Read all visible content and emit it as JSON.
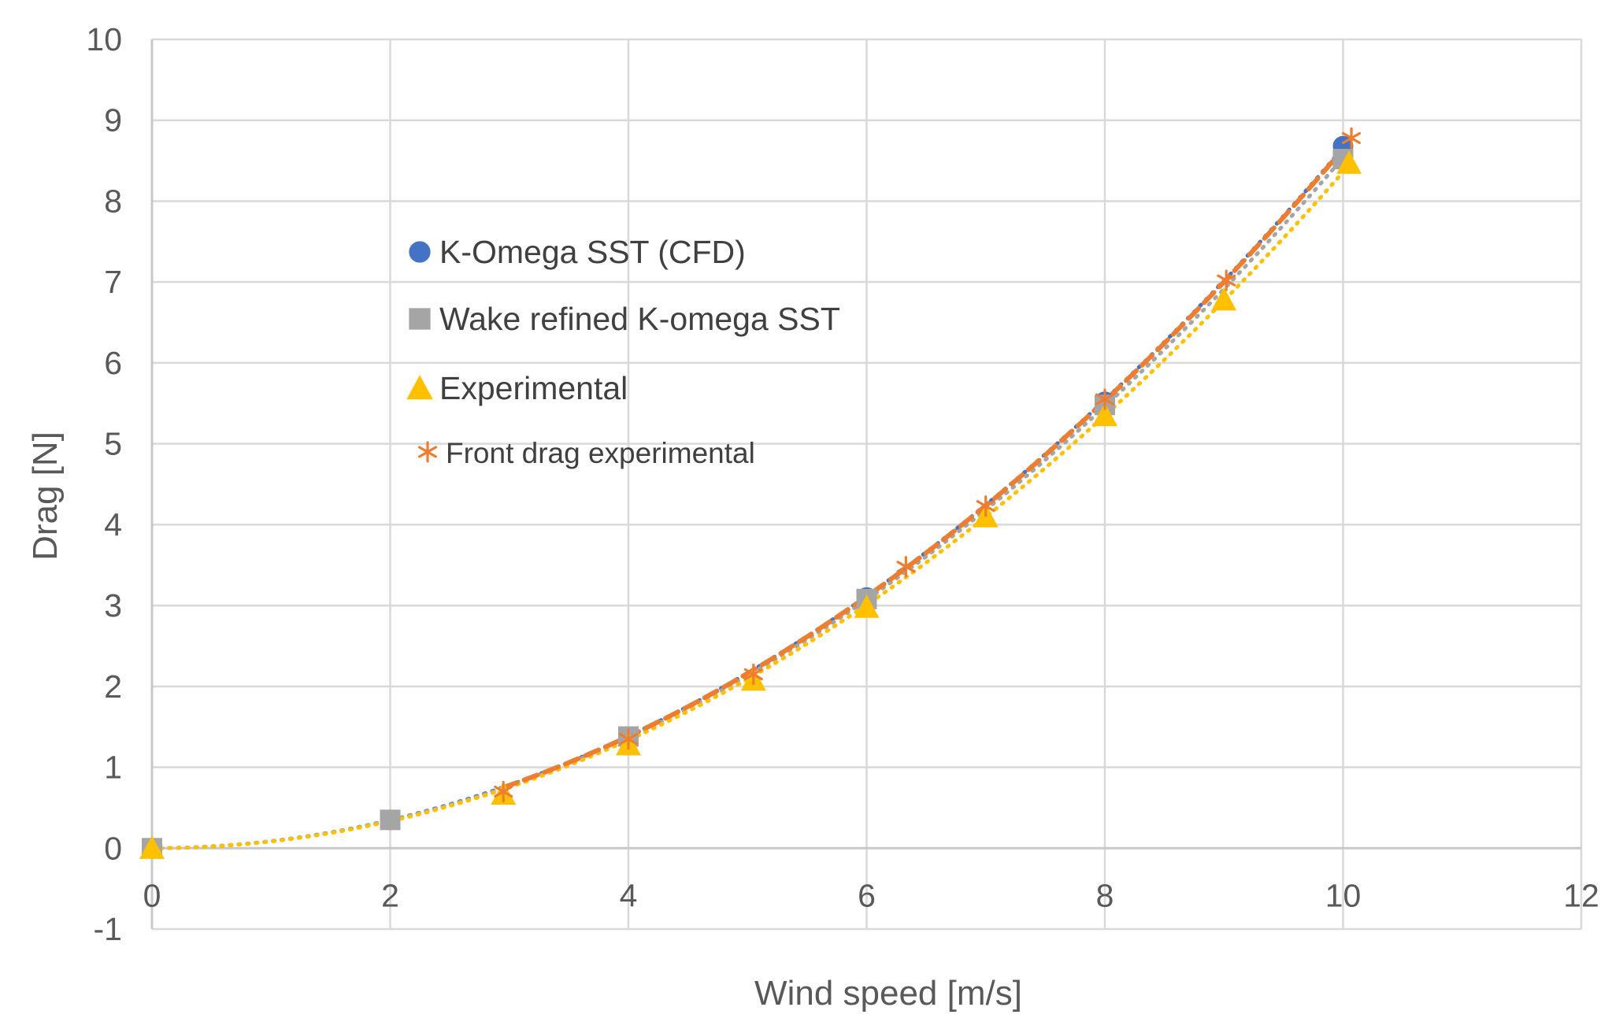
{
  "chart_data": {
    "type": "scatter",
    "xlabel": "Wind speed [m/s]",
    "ylabel": "Drag [N]",
    "xlim": [
      0,
      12
    ],
    "ylim": [
      -1,
      10
    ],
    "x_ticks": [
      0,
      2,
      4,
      6,
      8,
      10,
      12
    ],
    "y_ticks": [
      -1,
      0,
      1,
      2,
      3,
      4,
      5,
      6,
      7,
      8,
      9,
      10
    ],
    "grid": true,
    "legend_position": "inside-upper-left",
    "series": [
      {
        "name": "K-Omega SST (CFD)",
        "marker": "circle",
        "color": "#4472C4",
        "trendline": "dotted",
        "points": [
          [
            0,
            0
          ],
          [
            2,
            0.35
          ],
          [
            4,
            1.38
          ],
          [
            6,
            3.1
          ],
          [
            8,
            5.52
          ],
          [
            10,
            8.68
          ]
        ]
      },
      {
        "name": "Wake refined K-omega SST",
        "marker": "square",
        "color": "#A5A5A5",
        "trendline": "dotted",
        "points": [
          [
            0,
            0
          ],
          [
            2,
            0.35
          ],
          [
            4,
            1.38
          ],
          [
            6,
            3.08
          ],
          [
            8,
            5.48
          ],
          [
            10,
            8.52
          ]
        ]
      },
      {
        "name": "Experimental",
        "marker": "triangle",
        "color": "#FFC000",
        "trendline": "dotted",
        "points": [
          [
            0,
            0
          ],
          [
            2.95,
            0.67
          ],
          [
            4,
            1.28
          ],
          [
            5.05,
            2.08
          ],
          [
            6,
            2.98
          ],
          [
            7,
            4.1
          ],
          [
            8,
            5.35
          ],
          [
            9,
            6.78
          ],
          [
            10.05,
            8.47
          ]
        ]
      },
      {
        "name": "Front drag experimental",
        "marker": "asterisk",
        "color": "#ED7D31",
        "trendline": "dashed",
        "points": [
          [
            2.95,
            0.7
          ],
          [
            4,
            1.35
          ],
          [
            5.05,
            2.15
          ],
          [
            6.33,
            3.48
          ],
          [
            7,
            4.23
          ],
          [
            8,
            5.55
          ],
          [
            9.02,
            7.02
          ],
          [
            10.07,
            8.78
          ]
        ]
      }
    ]
  }
}
